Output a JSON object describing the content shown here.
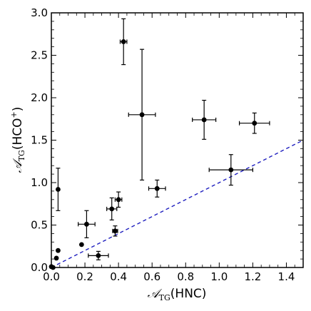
{
  "chart_data": {
    "type": "scatter",
    "title": "",
    "xlabel": {
      "prefix": "𝒜",
      "subscript": "TG",
      "text": "(HNC)"
    },
    "ylabel": {
      "prefix": "𝒜",
      "subscript": "TG",
      "text": "(HCO",
      "superscript": "+",
      "suffix": ")"
    },
    "xlim": [
      0.0,
      1.5
    ],
    "ylim": [
      0.0,
      3.0
    ],
    "xticks": [
      0.0,
      0.2,
      0.4,
      0.6,
      0.8,
      1.0,
      1.2,
      1.4
    ],
    "xtick_labels": [
      "0.0",
      "0.2",
      "0.4",
      "0.6",
      "0.8",
      "1.0",
      "1.2",
      "1.4"
    ],
    "yticks": [
      0.0,
      0.5,
      1.0,
      1.5,
      2.0,
      2.5,
      3.0
    ],
    "ytick_labels": [
      "0.0",
      "0.5",
      "1.0",
      "1.5",
      "2.0",
      "2.5",
      "3.0"
    ],
    "minor_ticks": true,
    "grid": false,
    "marker_color": "#000000",
    "reference_line": {
      "style": "dashed",
      "color": "#1f1fbf",
      "points": [
        [
          0.0,
          0.0
        ],
        [
          1.5,
          1.5
        ]
      ]
    },
    "points": [
      {
        "x": 0.0,
        "y": 0.01,
        "xerr": 0.0,
        "yerr": 0.0
      },
      {
        "x": 0.01,
        "y": 0.0,
        "xerr": 0.0,
        "yerr": 0.0
      },
      {
        "x": 0.03,
        "y": 0.11,
        "xerr": 0.0,
        "yerr": 0.0
      },
      {
        "x": 0.04,
        "y": 0.2,
        "xerr": 0.0,
        "yerr": 0.0
      },
      {
        "x": 0.04,
        "y": 0.92,
        "xerr": 0.0,
        "yerr": 0.25
      },
      {
        "x": 0.18,
        "y": 0.27,
        "xerr": 0.0,
        "yerr": 0.0
      },
      {
        "x": 0.21,
        "y": 0.51,
        "xerr": 0.05,
        "yerr": 0.16
      },
      {
        "x": 0.28,
        "y": 0.14,
        "xerr": 0.06,
        "yerr": 0.05
      },
      {
        "x": 0.36,
        "y": 0.69,
        "xerr": 0.03,
        "yerr": 0.13
      },
      {
        "x": 0.38,
        "y": 0.43,
        "xerr": 0.015,
        "yerr": 0.06
      },
      {
        "x": 0.4,
        "y": 0.8,
        "xerr": 0.02,
        "yerr": 0.09
      },
      {
        "x": 0.43,
        "y": 2.66,
        "xerr": 0.02,
        "yerr": 0.27
      },
      {
        "x": 0.54,
        "y": 1.8,
        "xerr": 0.08,
        "yerr": 0.77
      },
      {
        "x": 0.63,
        "y": 0.93,
        "xerr": 0.05,
        "yerr": 0.1
      },
      {
        "x": 0.91,
        "y": 1.74,
        "xerr": 0.07,
        "yerr": 0.23
      },
      {
        "x": 1.07,
        "y": 1.15,
        "xerr": 0.13,
        "yerr": 0.18
      },
      {
        "x": 1.21,
        "y": 1.7,
        "xerr": 0.09,
        "yerr": 0.12
      }
    ]
  }
}
